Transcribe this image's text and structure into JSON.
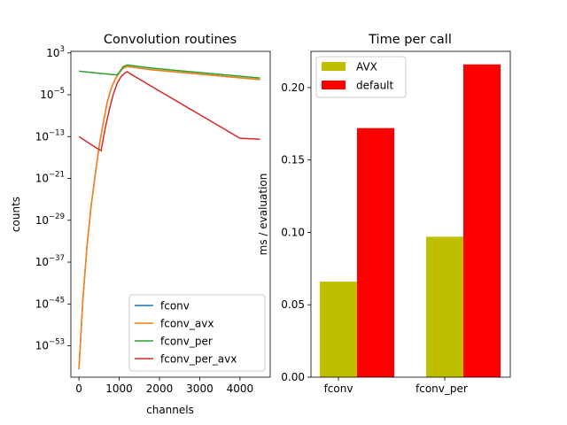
{
  "chart_data": [
    {
      "type": "line",
      "title": "Convolution routines",
      "xlabel": "channels",
      "ylabel": "counts",
      "yscale": "log",
      "xlim": [
        -200,
        4750
      ],
      "ylim_exponent": [
        -59,
        3.3
      ],
      "x_ticks": [
        0,
        1000,
        2000,
        3000,
        4000
      ],
      "y_ticks": [
        {
          "exp": 3,
          "label": "10",
          "sup": "3"
        },
        {
          "exp": -5,
          "label": "10",
          "sup": "−5"
        },
        {
          "exp": -13,
          "label": "10",
          "sup": "−13"
        },
        {
          "exp": -21,
          "label": "10",
          "sup": "−21"
        },
        {
          "exp": -29,
          "label": "10",
          "sup": "−29"
        },
        {
          "exp": -37,
          "label": "10",
          "sup": "−37"
        },
        {
          "exp": -45,
          "label": "10",
          "sup": "−45"
        },
        {
          "exp": -53,
          "label": "10",
          "sup": "−53"
        }
      ],
      "legend_position": "lower-right",
      "series": [
        {
          "name": "fconv",
          "color": "#1f77b4",
          "points": [
            [
              0,
              -57.5
            ],
            [
              100,
              -44
            ],
            [
              200,
              -34
            ],
            [
              300,
              -26.5
            ],
            [
              400,
              -20.5
            ],
            [
              500,
              -15
            ],
            [
              600,
              -10.5
            ],
            [
              700,
              -6.5
            ],
            [
              800,
              -3.8
            ],
            [
              900,
              -2
            ],
            [
              1000,
              -0.8
            ],
            [
              1100,
              0.1
            ],
            [
              1200,
              0.4
            ],
            [
              1400,
              0.2
            ],
            [
              1800,
              -0.2
            ],
            [
              2500,
              -0.7
            ],
            [
              3500,
              -1.4
            ],
            [
              4500,
              -2.1
            ]
          ]
        },
        {
          "name": "fconv_avx",
          "color": "#ff7f0e",
          "points": [
            [
              0,
              -57.5
            ],
            [
              100,
              -44
            ],
            [
              200,
              -34
            ],
            [
              300,
              -26.5
            ],
            [
              400,
              -20.5
            ],
            [
              500,
              -15
            ],
            [
              600,
              -10.5
            ],
            [
              700,
              -6.5
            ],
            [
              800,
              -3.8
            ],
            [
              900,
              -2
            ],
            [
              1000,
              -0.8
            ],
            [
              1100,
              0.1
            ],
            [
              1200,
              0.4
            ],
            [
              1400,
              0.2
            ],
            [
              1800,
              -0.2
            ],
            [
              2500,
              -0.7
            ],
            [
              3500,
              -1.4
            ],
            [
              4500,
              -2.1
            ]
          ]
        },
        {
          "name": "fconv_per",
          "color": "#2ca02c",
          "points": [
            [
              0,
              -0.5
            ],
            [
              500,
              -0.9
            ],
            [
              950,
              -1.2
            ],
            [
              1050,
              -0.2
            ],
            [
              1100,
              0.4
            ],
            [
              1200,
              0.7
            ],
            [
              1400,
              0.5
            ],
            [
              1800,
              0.1
            ],
            [
              2500,
              -0.4
            ],
            [
              3500,
              -1.1
            ],
            [
              4500,
              -1.8
            ]
          ]
        },
        {
          "name": "fconv_per_avx",
          "color": "#d62728",
          "points": [
            [
              0,
              -13
            ],
            [
              200,
              -14
            ],
            [
              400,
              -15
            ],
            [
              550,
              -15.7
            ],
            [
              650,
              -11.5
            ],
            [
              750,
              -8
            ],
            [
              850,
              -5
            ],
            [
              950,
              -2.8
            ],
            [
              1050,
              -1.5
            ],
            [
              1150,
              -0.8
            ],
            [
              1200,
              -0.6
            ],
            [
              1300,
              -1.1
            ],
            [
              2000,
              -4.3
            ],
            [
              3000,
              -8.8
            ],
            [
              4000,
              -13.3
            ],
            [
              4500,
              -13.5
            ]
          ]
        }
      ]
    },
    {
      "type": "bar",
      "title": "Time per call",
      "xlabel": "",
      "ylabel": "ms / evaluation",
      "ylim": [
        0,
        0.225
      ],
      "y_ticks": [
        "0.00",
        "0.05",
        "0.10",
        "0.15",
        "0.20"
      ],
      "categories": [
        "fconv",
        "fconv_per"
      ],
      "legend_position": "top-left",
      "series": [
        {
          "name": "AVX",
          "color": "#bfbf00",
          "values": [
            0.066,
            0.097
          ]
        },
        {
          "name": "default",
          "color": "#ff0000",
          "values": [
            0.172,
            0.216
          ]
        }
      ]
    }
  ]
}
